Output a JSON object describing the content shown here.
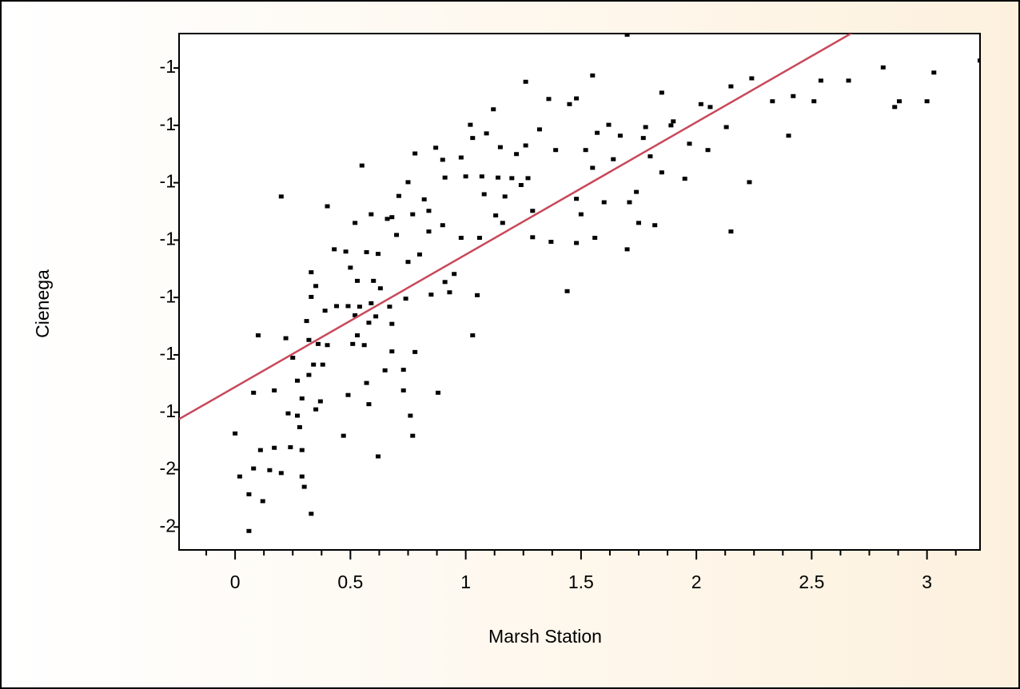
{
  "chart_data": {
    "type": "scatter",
    "xlabel": "Marsh Station",
    "ylabel": "Cienega",
    "xlim": [
      -0.243,
      3.23
    ],
    "ylim": [
      -1.64,
      -0.74
    ],
    "xticks": [
      0,
      0.5,
      1,
      1.5,
      2,
      2.5,
      3
    ],
    "xminorticks": [
      -0.125,
      0.125,
      0.25,
      0.375,
      0.625,
      0.75,
      0.875,
      1.125,
      1.25,
      1.375,
      1.625,
      1.75,
      1.875,
      2.125,
      2.25,
      2.375,
      2.625,
      2.75,
      2.875,
      3.125
    ],
    "yticks": [
      {
        "value": -0.8,
        "label": "-1"
      },
      {
        "value": -0.9,
        "label": "-1"
      },
      {
        "value": -1.0,
        "label": "-1"
      },
      {
        "value": -1.1,
        "label": "-1"
      },
      {
        "value": -1.2,
        "label": "-1"
      },
      {
        "value": -1.3,
        "label": "-1"
      },
      {
        "value": -1.4,
        "label": "-1"
      },
      {
        "value": -1.5,
        "label": "-2"
      },
      {
        "value": -1.6,
        "label": "-2"
      }
    ],
    "color": "#000000",
    "x": [
      0.0,
      0.02,
      0.06,
      0.06,
      0.08,
      0.08,
      0.1,
      0.11,
      0.12,
      0.15,
      0.17,
      0.17,
      0.2,
      0.2,
      0.22,
      0.23,
      0.24,
      0.25,
      0.27,
      0.27,
      0.28,
      0.29,
      0.29,
      0.29,
      0.3,
      0.31,
      0.32,
      0.32,
      0.33,
      0.33,
      0.33,
      0.34,
      0.35,
      0.35,
      0.36,
      0.37,
      0.38,
      0.39,
      0.4,
      0.4,
      0.43,
      0.44,
      0.48,
      0.47,
      0.49,
      0.49,
      0.5,
      0.51,
      0.52,
      0.52,
      0.53,
      0.53,
      0.54,
      0.55,
      0.56,
      0.57,
      0.57,
      0.58,
      0.58,
      0.59,
      0.59,
      0.6,
      0.61,
      0.62,
      0.62,
      0.63,
      0.65,
      0.66,
      0.67,
      0.68,
      0.68,
      0.68,
      0.7,
      0.71,
      0.73,
      0.73,
      0.74,
      0.75,
      0.75,
      0.76,
      0.77,
      0.77,
      0.78,
      0.78,
      0.8,
      0.82,
      0.84,
      0.84,
      0.85,
      0.87,
      0.88,
      0.9,
      0.9,
      0.91,
      0.91,
      0.93,
      0.95,
      0.98,
      0.98,
      1.0,
      1.02,
      1.03,
      1.03,
      1.05,
      1.06,
      1.07,
      1.08,
      1.09,
      1.12,
      1.13,
      1.14,
      1.15,
      1.16,
      1.17,
      1.2,
      1.22,
      1.24,
      1.26,
      1.26,
      1.27,
      1.29,
      1.29,
      1.32,
      1.36,
      1.37,
      1.39,
      1.44,
      1.45,
      1.48,
      1.48,
      1.48,
      1.5,
      1.52,
      1.55,
      1.55,
      1.56,
      1.57,
      1.6,
      1.62,
      1.64,
      1.67,
      1.7,
      1.7,
      1.71,
      1.74,
      1.75,
      1.77,
      1.78,
      1.8,
      1.82,
      1.85,
      1.85,
      1.89,
      1.9,
      1.95,
      1.97,
      2.02,
      2.05,
      2.06,
      2.13,
      2.15,
      2.15,
      2.23,
      2.24,
      2.33,
      2.4,
      2.42,
      2.51,
      2.54,
      2.66,
      2.81,
      2.86,
      2.88,
      3.0,
      3.03,
      3.23
    ],
    "values": [
      -1.437,
      -1.512,
      -1.607,
      -1.543,
      -1.498,
      -1.366,
      -1.266,
      -1.466,
      -1.555,
      -1.501,
      -1.362,
      -1.462,
      -1.024,
      -1.506,
      -1.271,
      -1.402,
      -1.461,
      -1.305,
      -1.345,
      -1.406,
      -1.426,
      -1.466,
      -1.512,
      -1.376,
      -1.53,
      -1.241,
      -1.335,
      -1.274,
      -1.577,
      -1.199,
      -1.156,
      -1.317,
      -1.395,
      -1.18,
      -1.281,
      -1.381,
      -1.317,
      -1.223,
      -1.041,
      -1.283,
      -1.116,
      -1.215,
      -1.12,
      -1.441,
      -1.37,
      -1.215,
      -1.148,
      -1.281,
      -1.07,
      -1.231,
      -1.171,
      -1.266,
      -1.216,
      -0.97,
      -1.283,
      -1.349,
      -1.121,
      -1.386,
      -1.244,
      -1.21,
      -1.055,
      -1.171,
      -1.233,
      -1.477,
      -1.124,
      -1.184,
      -1.327,
      -1.063,
      -1.216,
      -1.246,
      -1.06,
      -1.294,
      -1.091,
      -1.023,
      -1.326,
      -1.362,
      -1.202,
      -1.138,
      -0.999,
      -1.406,
      -1.441,
      -1.055,
      -1.295,
      -0.949,
      -1.125,
      -1.029,
      -1.049,
      -1.085,
      -1.195,
      -0.939,
      -1.366,
      -1.074,
      -0.96,
      -1.173,
      -0.991,
      -1.191,
      -1.159,
      -0.956,
      -1.096,
      -0.989,
      -0.899,
      -1.266,
      -0.922,
      -1.196,
      -1.096,
      -0.989,
      -1.02,
      -0.914,
      -0.872,
      -1.057,
      -0.991,
      -0.938,
      -1.07,
      -1.024,
      -0.992,
      -0.95,
      -1.004,
      -0.824,
      -0.935,
      -0.992,
      -1.095,
      -1.049,
      -0.907,
      -0.854,
      -1.103,
      -0.943,
      -1.189,
      -0.863,
      -0.853,
      -1.028,
      -1.105,
      -1.055,
      -0.943,
      -0.813,
      -0.974,
      -1.096,
      -0.913,
      -1.034,
      -0.899,
      -0.959,
      -0.918,
      -1.116,
      -0.742,
      -1.034,
      -1.016,
      -1.07,
      -0.922,
      -0.903,
      -0.954,
      -1.074,
      -0.843,
      -0.982,
      -0.9,
      -0.893,
      -0.993,
      -0.932,
      -0.863,
      -0.943,
      -0.868,
      -0.903,
      -0.832,
      -1.085,
      -0.999,
      -0.818,
      -0.858,
      -0.918,
      -0.849,
      -0.858,
      -0.822,
      -0.822,
      -0.799,
      -0.868,
      -0.858,
      -0.858,
      -0.808,
      -0.787
    ],
    "fit": {
      "color": "#c8485a",
      "x": [
        -0.243,
        2.683
      ],
      "values": [
        -1.412,
        -0.737
      ]
    }
  }
}
